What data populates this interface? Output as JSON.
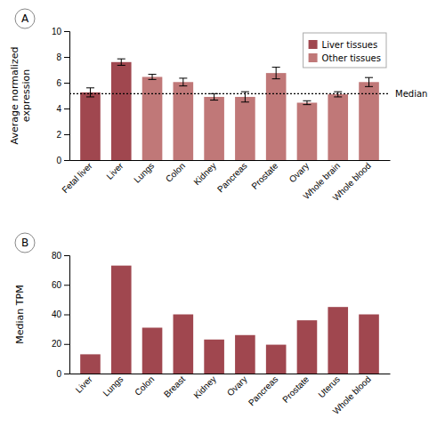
{
  "chart_data": [
    {
      "type": "bar",
      "panel_label": "A",
      "categories": [
        "Fetal liver",
        "Liver",
        "Lungs",
        "Colon",
        "Kidney",
        "Pancreas",
        "Prostate",
        "Ovary",
        "Whole brain",
        "Whole blood"
      ],
      "values": [
        5.25,
        7.6,
        6.45,
        6.05,
        4.9,
        4.9,
        6.75,
        4.45,
        5.1,
        6.05
      ],
      "errors": [
        0.35,
        0.25,
        0.2,
        0.3,
        0.25,
        0.4,
        0.45,
        0.15,
        0.2,
        0.35
      ],
      "colors": [
        "#a0474f",
        "#a0474f",
        "#c07878",
        "#c07878",
        "#c07878",
        "#c07878",
        "#c07878",
        "#c07878",
        "#c07878",
        "#c07878"
      ],
      "ylabel": "Average normalized\nexpression",
      "ylim": [
        0,
        10
      ],
      "yticks": [
        0,
        2,
        4,
        6,
        8,
        10
      ],
      "median_value": 5.15,
      "median_label": "Median",
      "legend": "upper right",
      "legend_entries": [
        {
          "name": "Liver tissues",
          "color": "#a0474f"
        },
        {
          "name": "Other tissues",
          "color": "#c07878"
        }
      ]
    },
    {
      "type": "bar",
      "panel_label": "B",
      "categories": [
        "Liver",
        "Lungs",
        "Colon",
        "Breast",
        "Kidney",
        "Ovary",
        "Pancreas",
        "Prostate",
        "Uterus",
        "Whole blood"
      ],
      "values": [
        13,
        73,
        31,
        40,
        23,
        26,
        19.5,
        36,
        45,
        40
      ],
      "color": "#a0474f",
      "ylabel": "Median TPM",
      "ylim": [
        0,
        80
      ],
      "yticks": [
        0,
        20,
        40,
        60,
        80
      ]
    }
  ]
}
